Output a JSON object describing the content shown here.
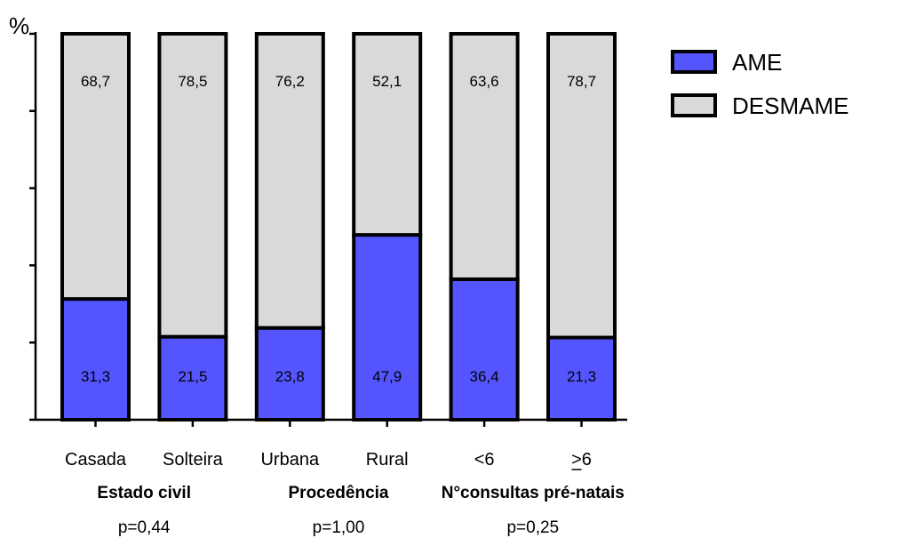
{
  "chart_data": {
    "type": "bar",
    "stacked": true,
    "ylabel": "%",
    "ylim": [
      0,
      100
    ],
    "categories": [
      "Casada",
      "Solteira",
      "Urbana",
      "Rural",
      "<6",
      ">6"
    ],
    "series": [
      {
        "name": "AME",
        "values": [
          31.3,
          21.5,
          23.8,
          47.9,
          36.4,
          21.3
        ],
        "labels": [
          "31,3",
          "21,5",
          "23,8",
          "47,9",
          "36,4",
          "21,3"
        ],
        "color": "#5555ff"
      },
      {
        "name": "DESMAME",
        "values": [
          68.7,
          78.5,
          76.2,
          52.1,
          63.6,
          78.7
        ],
        "labels": [
          "68,7",
          "78,5",
          "76,2",
          "52,1",
          "63,6",
          "78,7"
        ],
        "color": "#d9d9d9"
      }
    ],
    "groups": [
      {
        "label": "Estado civil",
        "p_value": "p=0,44",
        "categories": [
          "Casada",
          "Solteira"
        ]
      },
      {
        "label": "Procedência",
        "p_value": "p=1,00",
        "categories": [
          "Urbana",
          "Rural"
        ]
      },
      {
        "label": "N°consultas pré-natais",
        "p_value": "p=0,25",
        "categories": [
          "<6",
          ">6"
        ]
      }
    ],
    "legend": {
      "placement": "top-right",
      "entries": [
        "AME",
        "DESMAME"
      ]
    },
    "grid": false
  }
}
